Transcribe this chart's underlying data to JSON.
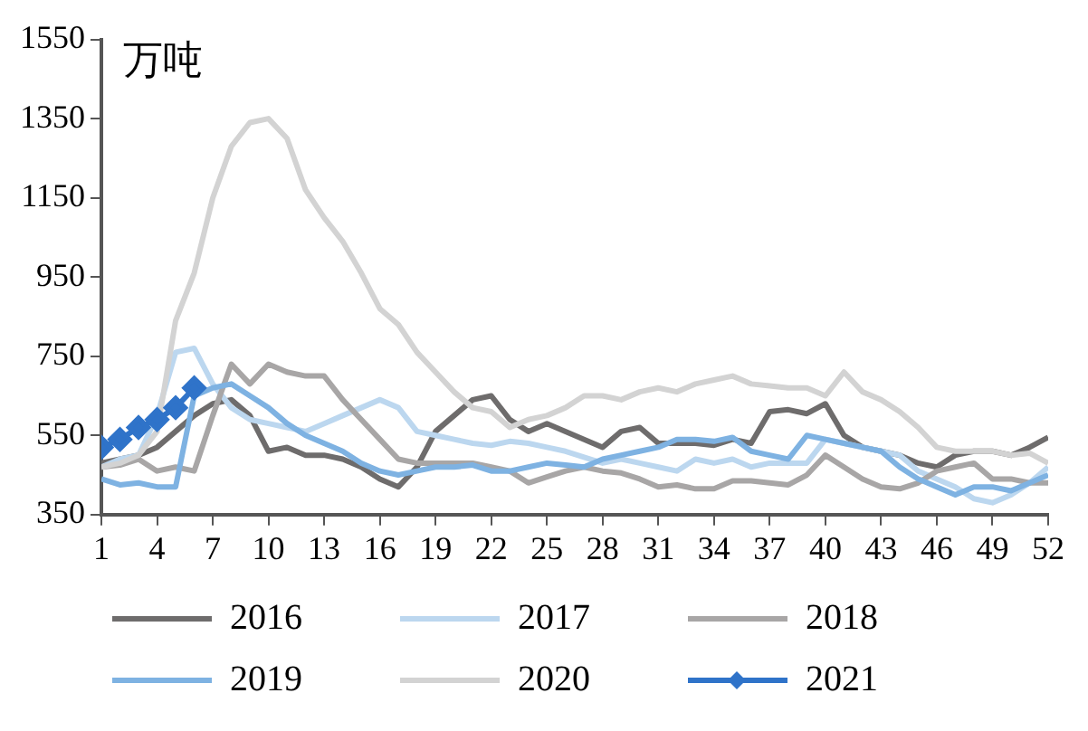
{
  "chart_data": {
    "type": "line",
    "ylabel": "万吨",
    "xlim": [
      1,
      52
    ],
    "xticks": [
      1,
      4,
      7,
      10,
      13,
      16,
      19,
      22,
      25,
      28,
      31,
      34,
      37,
      40,
      43,
      46,
      49,
      52
    ],
    "ylim": [
      350,
      1550
    ],
    "yticks": [
      350,
      550,
      750,
      950,
      1150,
      1350,
      1550
    ],
    "grid": false,
    "legend": "bottom",
    "marker": "none",
    "x": [
      1,
      2,
      3,
      4,
      5,
      6,
      7,
      8,
      9,
      10,
      11,
      12,
      13,
      14,
      15,
      16,
      17,
      18,
      19,
      20,
      21,
      22,
      23,
      24,
      25,
      26,
      27,
      28,
      29,
      30,
      31,
      32,
      33,
      34,
      35,
      36,
      37,
      38,
      39,
      40,
      41,
      42,
      43,
      44,
      45,
      46,
      47,
      48,
      49,
      50,
      51,
      52
    ],
    "series": [
      {
        "name": "2016",
        "color": "#6e6c6c",
        "values": [
          480,
          490,
          500,
          520,
          560,
          600,
          630,
          640,
          600,
          510,
          520,
          500,
          500,
          490,
          470,
          440,
          420,
          470,
          560,
          600,
          640,
          650,
          590,
          560,
          580,
          560,
          540,
          520,
          560,
          570,
          530,
          530,
          530,
          525,
          540,
          530,
          610,
          615,
          605,
          630,
          550,
          520,
          510,
          500,
          480,
          470,
          500,
          510,
          510,
          500,
          520,
          545
        ]
      },
      {
        "name": "2017",
        "color": "#bcd7ef",
        "values": [
          470,
          490,
          500,
          600,
          760,
          770,
          680,
          620,
          590,
          580,
          570,
          560,
          580,
          600,
          620,
          640,
          620,
          560,
          550,
          540,
          530,
          525,
          535,
          530,
          520,
          510,
          495,
          480,
          490,
          480,
          470,
          460,
          490,
          480,
          490,
          470,
          480,
          480,
          480,
          540,
          530,
          520,
          510,
          500,
          460,
          440,
          420,
          390,
          380,
          400,
          430,
          470
        ]
      },
      {
        "name": "2018",
        "color": "#a8a6a6",
        "values": [
          470,
          475,
          490,
          460,
          470,
          460,
          600,
          730,
          680,
          730,
          710,
          700,
          700,
          640,
          590,
          540,
          490,
          480,
          480,
          480,
          480,
          470,
          460,
          430,
          445,
          460,
          470,
          460,
          455,
          440,
          420,
          425,
          415,
          415,
          435,
          435,
          430,
          425,
          450,
          500,
          470,
          440,
          420,
          415,
          430,
          460,
          470,
          480,
          440,
          440,
          430,
          430
        ]
      },
      {
        "name": "2019",
        "color": "#7eb2e2",
        "values": [
          440,
          425,
          430,
          420,
          420,
          650,
          670,
          680,
          650,
          620,
          580,
          550,
          530,
          510,
          480,
          460,
          450,
          460,
          470,
          470,
          475,
          460,
          460,
          470,
          480,
          475,
          470,
          490,
          500,
          510,
          520,
          540,
          540,
          535,
          545,
          510,
          500,
          490,
          550,
          540,
          530,
          520,
          510,
          470,
          440,
          420,
          400,
          420,
          420,
          410,
          430,
          450
        ]
      },
      {
        "name": "2020",
        "color": "#d3d3d3",
        "values": [
          470,
          480,
          500,
          560,
          840,
          960,
          1150,
          1280,
          1340,
          1350,
          1300,
          1170,
          1100,
          1040,
          960,
          870,
          830,
          760,
          710,
          660,
          620,
          610,
          570,
          590,
          600,
          620,
          650,
          650,
          640,
          660,
          670,
          660,
          680,
          690,
          700,
          680,
          675,
          670,
          670,
          650,
          710,
          660,
          640,
          610,
          570,
          520,
          510,
          510,
          510,
          500,
          505,
          480
        ]
      },
      {
        "name": "2021",
        "color": "#2f73c9",
        "marker": "diamond",
        "x": [
          1,
          2,
          3,
          4,
          5,
          6
        ],
        "values": [
          520,
          540,
          570,
          590,
          620,
          670
        ]
      }
    ]
  }
}
